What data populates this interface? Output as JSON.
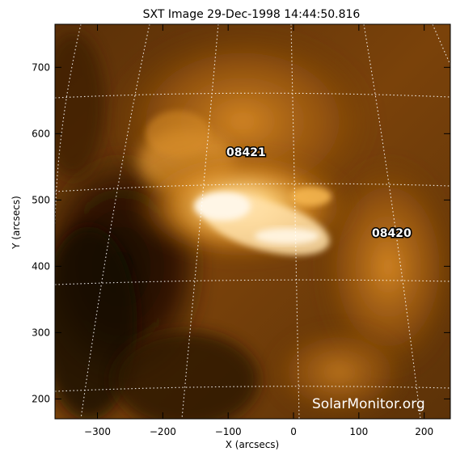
{
  "title": "SXT Image 29-Dec-1998 14:44:50.816",
  "x_axis": {
    "label": "X (arcsecs)",
    "ticks": [
      -300,
      -200,
      -100,
      0,
      100,
      200
    ],
    "range": [
      -365,
      240
    ]
  },
  "y_axis": {
    "label": "Y (arcsecs)",
    "ticks": [
      200,
      300,
      400,
      500,
      600,
      700
    ],
    "range": [
      170,
      765
    ]
  },
  "regions": [
    {
      "id": "08421",
      "x": -70,
      "y": 575
    },
    {
      "id": "08420",
      "x": 160,
      "y": 450
    }
  ],
  "watermark": "SolarMonitor.org",
  "colors": {
    "sun_dark": "#1a0c02",
    "sun_mid": "#8a4a08",
    "sun_bright": "#f0a030",
    "sun_core": "#fff0d8"
  }
}
